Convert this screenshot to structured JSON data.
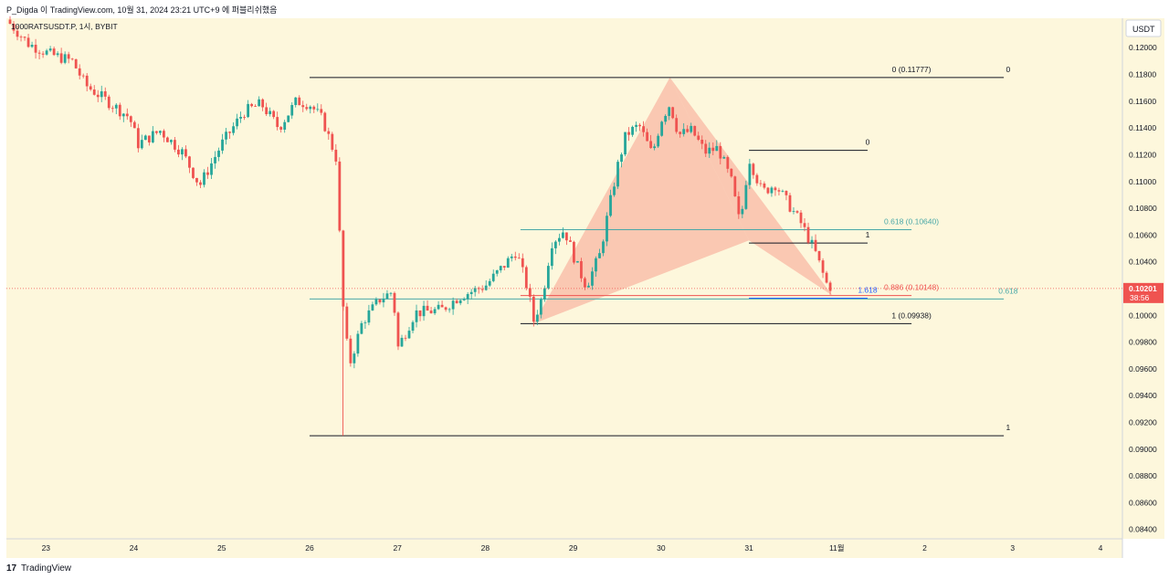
{
  "header": {
    "attribution": "P_Digda 이 TradingView.com, 10월 31, 2024 23:21 UTC+9 에 퍼블리쉬했음"
  },
  "footer": {
    "brand_mark": "17",
    "brand_name": "TradingView"
  },
  "colors": {
    "background": "#fdf7dc",
    "up": "#26a69a",
    "down": "#ef5350",
    "pattern_fill": "#f8b4a0",
    "teal_line": "#4aa8a8",
    "blue_line": "#2962ff",
    "price_tag": "#ef5350"
  },
  "chart_data": {
    "type": "candlestick",
    "symbol_label": "1000RATSUSDT.P, 1시, BYBIT",
    "currency_label": "USDT",
    "y_range": [
      0.0833,
      0.1222
    ],
    "y_ticks": [
      "0.12000",
      "0.11800",
      "0.11600",
      "0.11400",
      "0.11200",
      "0.11000",
      "0.10800",
      "0.10600",
      "0.10400",
      "0.10200",
      "0.10000",
      "0.09800",
      "0.09600",
      "0.09400",
      "0.09200",
      "0.09000",
      "0.08800",
      "0.08600",
      "0.08400"
    ],
    "x_ticks": [
      {
        "label": "23",
        "t": 0
      },
      {
        "label": "24",
        "t": 1
      },
      {
        "label": "25",
        "t": 2
      },
      {
        "label": "26",
        "t": 3
      },
      {
        "label": "27",
        "t": 4
      },
      {
        "label": "28",
        "t": 5
      },
      {
        "label": "29",
        "t": 6
      },
      {
        "label": "30",
        "t": 7
      },
      {
        "label": "31",
        "t": 8
      },
      {
        "label": "11월",
        "t": 9
      },
      {
        "label": "2",
        "t": 10
      },
      {
        "label": "3",
        "t": 11
      },
      {
        "label": "4",
        "t": 12
      }
    ],
    "x_range_days": [
      -0.45,
      12.25
    ],
    "last_price": {
      "value": 0.10201,
      "label": "0.10201",
      "countdown": "38:56"
    },
    "candle_anchors": [
      [
        -0.45,
        0.1221
      ],
      [
        -0.2,
        0.1203
      ],
      [
        0.05,
        0.1195
      ],
      [
        0.3,
        0.119
      ],
      [
        0.45,
        0.1172
      ],
      [
        0.7,
        0.116
      ],
      [
        0.95,
        0.1148
      ],
      [
        1.05,
        0.1128
      ],
      [
        1.3,
        0.1138
      ],
      [
        1.55,
        0.1122
      ],
      [
        1.75,
        0.1097
      ],
      [
        2.0,
        0.1128
      ],
      [
        2.25,
        0.1152
      ],
      [
        2.45,
        0.1158
      ],
      [
        2.65,
        0.114
      ],
      [
        2.85,
        0.116
      ],
      [
        3.0,
        0.1158
      ],
      [
        3.15,
        0.1146
      ],
      [
        3.3,
        0.1118
      ],
      [
        3.38,
        0.1008
      ],
      [
        3.45,
        0.0962
      ],
      [
        3.6,
        0.0995
      ],
      [
        3.8,
        0.1012
      ],
      [
        3.95,
        0.1018
      ],
      [
        4.0,
        0.0975
      ],
      [
        4.2,
        0.1002
      ],
      [
        4.5,
        0.1004
      ],
      [
        4.7,
        0.1014
      ],
      [
        5.0,
        0.1022
      ],
      [
        5.25,
        0.104
      ],
      [
        5.35,
        0.1048
      ],
      [
        5.48,
        0.102
      ],
      [
        5.55,
        0.0996
      ],
      [
        5.65,
        0.1014
      ],
      [
        5.75,
        0.1054
      ],
      [
        5.9,
        0.1064
      ],
      [
        6.05,
        0.1036
      ],
      [
        6.15,
        0.1022
      ],
      [
        6.3,
        0.1045
      ],
      [
        6.5,
        0.111
      ],
      [
        6.6,
        0.1135
      ],
      [
        6.75,
        0.1142
      ],
      [
        6.9,
        0.112
      ],
      [
        7.0,
        0.1146
      ],
      [
        7.1,
        0.1158
      ],
      [
        7.2,
        0.1135
      ],
      [
        7.35,
        0.1138
      ],
      [
        7.5,
        0.1122
      ],
      [
        7.65,
        0.1125
      ],
      [
        7.8,
        0.11
      ],
      [
        7.9,
        0.1067
      ],
      [
        8.0,
        0.1118
      ],
      [
        8.15,
        0.1092
      ],
      [
        8.3,
        0.1098
      ],
      [
        8.45,
        0.1083
      ],
      [
        8.6,
        0.1068
      ],
      [
        8.75,
        0.1048
      ],
      [
        8.88,
        0.1024
      ],
      [
        8.95,
        0.10201
      ]
    ],
    "seed": 7
  },
  "drawings": {
    "pattern_points": [
      {
        "t": 5.55,
        "p": 0.09938
      },
      {
        "t": 7.1,
        "p": 0.11777
      },
      {
        "t": 8.0,
        "p": 0.1056
      },
      {
        "t": 8.95,
        "p": 0.10148
      }
    ],
    "lines": [
      {
        "name": "fib-outer-zero-line",
        "t1": 3.0,
        "t2": 10.9,
        "p": 0.11777,
        "color": "#131722"
      },
      {
        "name": "fib-outer-one-line",
        "t1": 3.0,
        "t2": 10.9,
        "p": 0.091,
        "color": "#131722"
      },
      {
        "name": "fib-outer-618-line",
        "t1": 3.0,
        "t2": 10.9,
        "p": 0.10122,
        "color": "#4aa8a8"
      },
      {
        "name": "xabcd-x-line",
        "t1": 5.4,
        "t2": 9.85,
        "p": 0.09938,
        "color": "#131722"
      },
      {
        "name": "xabcd-618-line",
        "t1": 5.4,
        "t2": 9.85,
        "p": 0.1064,
        "color": "#4aa8a8"
      },
      {
        "name": "xabcd-886-line",
        "t1": 5.4,
        "t2": 9.85,
        "p": 0.10148,
        "color": "#ef5350"
      },
      {
        "name": "ab-zero-line",
        "t1": 8.0,
        "t2": 9.35,
        "p": 0.11233,
        "color": "#131722"
      },
      {
        "name": "ab-one-line",
        "t1": 8.0,
        "t2": 9.35,
        "p": 0.1054,
        "color": "#131722"
      },
      {
        "name": "ab-1618-line",
        "t1": 8.0,
        "t2": 9.35,
        "p": 0.10128,
        "color": "#2962ff"
      }
    ],
    "labels": [
      {
        "name": "fib-outer-zero-label",
        "text": "0 (0.11777)",
        "t": 9.85,
        "p": 0.11777,
        "color": "#131722"
      },
      {
        "name": "fib-outer-zero-end-label",
        "text": "0",
        "t": 10.95,
        "p": 0.11777,
        "color": "#131722"
      },
      {
        "name": "fib-outer-one-end-label",
        "text": "1",
        "t": 10.95,
        "p": 0.091,
        "color": "#131722"
      },
      {
        "name": "fib-outer-618-label",
        "text": "0.618",
        "t": 10.95,
        "p": 0.10122,
        "color": "#4aa8a8"
      },
      {
        "name": "xabcd-618-label",
        "text": "0.618 (0.10640)",
        "t": 9.85,
        "p": 0.1064,
        "color": "#4aa8a8"
      },
      {
        "name": "xabcd-886-label",
        "text": "0.886 (0.10148)",
        "t": 9.85,
        "p": 0.10148,
        "color": "#ef5350"
      },
      {
        "name": "xabcd-x-label",
        "text": "1 (0.09938)",
        "t": 9.85,
        "p": 0.09938,
        "color": "#131722"
      },
      {
        "name": "ab-zero-label",
        "text": "0",
        "t": 9.35,
        "p": 0.11233,
        "color": "#131722"
      },
      {
        "name": "ab-one-label",
        "text": "1",
        "t": 9.35,
        "p": 0.1054,
        "color": "#131722"
      },
      {
        "name": "ab-1618-label",
        "text": "1.618",
        "t": 9.35,
        "p": 0.10128,
        "color": "#2962ff"
      }
    ]
  }
}
